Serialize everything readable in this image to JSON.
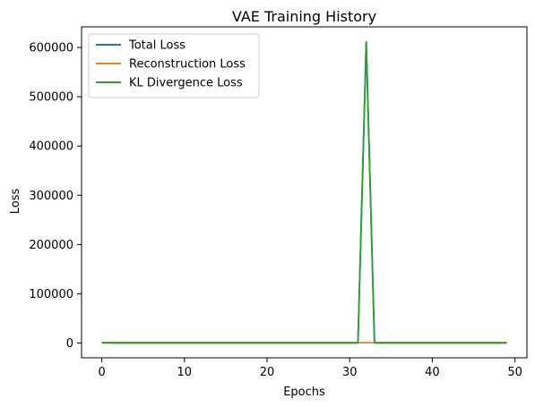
{
  "chart_data": {
    "type": "line",
    "title": "VAE Training History",
    "xlabel": "Epochs",
    "ylabel": "Loss",
    "xlim": [
      -2.45,
      51.45
    ],
    "ylim": [
      -30000,
      642000
    ],
    "xticks": [
      0,
      10,
      20,
      30,
      40,
      50
    ],
    "yticks": [
      0,
      100000,
      200000,
      300000,
      400000,
      500000,
      600000
    ],
    "legend_position": "top-left",
    "grid": false,
    "x": [
      0,
      1,
      2,
      3,
      4,
      5,
      6,
      7,
      8,
      9,
      10,
      11,
      12,
      13,
      14,
      15,
      16,
      17,
      18,
      19,
      20,
      21,
      22,
      23,
      24,
      25,
      26,
      27,
      28,
      29,
      30,
      31,
      32,
      33,
      34,
      35,
      36,
      37,
      38,
      39,
      40,
      41,
      42,
      43,
      44,
      45,
      46,
      47,
      48,
      49
    ],
    "series": [
      {
        "name": "Total Loss",
        "color": "#1f77b4",
        "values": [
          1100,
          900,
          800,
          800,
          800,
          800,
          800,
          800,
          800,
          800,
          800,
          800,
          800,
          800,
          800,
          800,
          800,
          800,
          800,
          800,
          800,
          800,
          800,
          800,
          800,
          800,
          800,
          800,
          800,
          800,
          800,
          800,
          611600,
          800,
          800,
          800,
          800,
          800,
          800,
          800,
          800,
          800,
          800,
          800,
          800,
          800,
          800,
          800,
          800,
          800
        ]
      },
      {
        "name": "Reconstruction Loss",
        "color": "#ff7f0e",
        "values": [
          900,
          700,
          700,
          700,
          700,
          700,
          700,
          700,
          700,
          700,
          700,
          700,
          700,
          700,
          700,
          700,
          700,
          700,
          700,
          700,
          700,
          700,
          700,
          700,
          700,
          700,
          700,
          700,
          700,
          700,
          700,
          700,
          700,
          700,
          700,
          700,
          700,
          700,
          700,
          700,
          700,
          700,
          700,
          700,
          700,
          700,
          700,
          700,
          700,
          700
        ]
      },
      {
        "name": "KL Divergence Loss",
        "color": "#2ca02c",
        "values": [
          200,
          150,
          100,
          100,
          100,
          100,
          100,
          100,
          100,
          100,
          100,
          100,
          100,
          100,
          100,
          100,
          100,
          100,
          100,
          100,
          100,
          100,
          100,
          100,
          100,
          100,
          100,
          100,
          100,
          100,
          100,
          100,
          610900,
          100,
          100,
          100,
          100,
          100,
          100,
          100,
          100,
          100,
          100,
          100,
          100,
          100,
          100,
          100,
          100,
          100
        ]
      }
    ]
  }
}
